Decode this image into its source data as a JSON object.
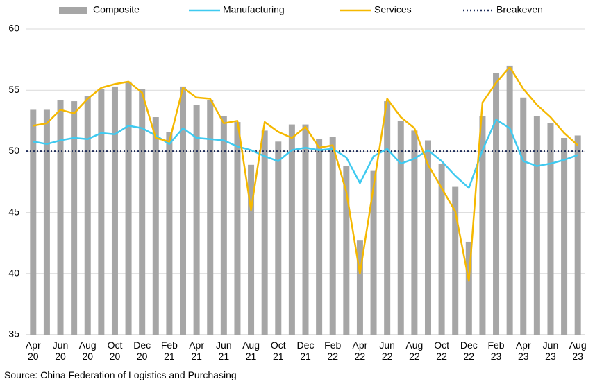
{
  "chart_data": {
    "type": "bar",
    "categories": [
      "Apr\n20",
      null,
      "Jun\n20",
      null,
      "Aug\n20",
      null,
      "Oct\n20",
      null,
      "Dec\n20",
      null,
      "Feb\n21",
      null,
      "Apr\n21",
      null,
      "Jun\n21",
      null,
      "Aug\n21",
      null,
      "Oct\n21",
      null,
      "Dec\n21",
      null,
      "Feb\n22",
      null,
      "Apr\n22",
      null,
      "Jun\n22",
      null,
      "Aug\n22",
      null,
      "Oct\n22",
      null,
      "Dec\n22",
      null,
      "Feb\n23",
      null,
      "Apr\n23",
      null,
      "Jun\n23",
      null,
      "Aug\n23"
    ],
    "series": [
      {
        "name": "Composite",
        "type": "bar",
        "color": "#a6a6a6",
        "values": [
          53.4,
          53.4,
          54.2,
          54.1,
          54.5,
          55.1,
          55.3,
          55.7,
          55.1,
          52.8,
          51.6,
          55.3,
          53.8,
          54.2,
          52.9,
          52.4,
          48.9,
          51.7,
          50.8,
          52.2,
          52.2,
          51.0,
          51.2,
          48.8,
          42.7,
          48.4,
          54.1,
          52.5,
          51.7,
          50.9,
          49.0,
          47.1,
          42.6,
          52.9,
          56.4,
          57.0,
          54.4,
          52.9,
          52.3,
          51.1,
          51.3
        ]
      },
      {
        "name": "Manufacturing",
        "type": "line",
        "color": "#3fcaf0",
        "values": [
          50.8,
          50.6,
          50.9,
          51.1,
          51.0,
          51.5,
          51.4,
          52.1,
          51.9,
          51.3,
          50.6,
          51.9,
          51.1,
          51.0,
          50.9,
          50.4,
          50.1,
          49.6,
          49.2,
          50.1,
          50.3,
          50.1,
          50.2,
          49.5,
          47.4,
          49.6,
          50.2,
          49.0,
          49.4,
          50.1,
          49.2,
          48.0,
          47.0,
          50.1,
          52.6,
          51.9,
          49.2,
          48.8,
          49.0,
          49.3,
          49.7
        ]
      },
      {
        "name": "Services",
        "type": "line",
        "color": "#f5b800",
        "values": [
          52.1,
          52.3,
          53.4,
          53.1,
          54.3,
          55.2,
          55.5,
          55.7,
          54.8,
          51.1,
          50.8,
          55.2,
          54.4,
          54.3,
          52.3,
          52.5,
          45.2,
          52.4,
          51.6,
          51.1,
          52.0,
          50.3,
          50.5,
          46.7,
          40.0,
          47.1,
          54.3,
          52.8,
          51.9,
          48.9,
          47.0,
          45.1,
          39.4,
          54.0,
          55.6,
          56.9,
          55.1,
          53.8,
          52.8,
          51.5,
          50.5
        ]
      }
    ],
    "breakeven": {
      "name": "Breakeven",
      "value": 50,
      "color": "#1f2d5a"
    },
    "ylim": [
      35,
      60
    ],
    "yticks": [
      35,
      40,
      45,
      50,
      55,
      60
    ],
    "grid": true,
    "source": "Source: China Federation of Logistics and Purchasing"
  }
}
